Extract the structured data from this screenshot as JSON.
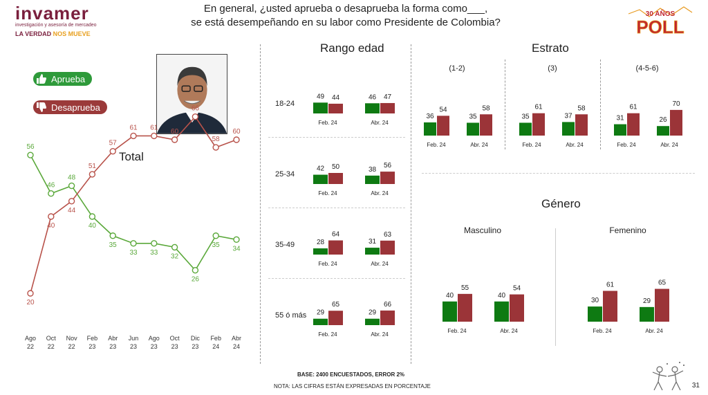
{
  "header": {
    "logo_word": "invamer",
    "logo_sub": "investigación y asesoría de mercadeo",
    "logo_tag_a": "LA VERDAD ",
    "logo_tag_b": "NOS MUEVE",
    "question_line1": "En general, ¿usted aprueba o desaprueba la forma como___,",
    "question_line2": "se está desempeñando en su labor como Presidente de Colombia?",
    "badge_top": "30 AÑOS",
    "badge_main": "POLL"
  },
  "legend": {
    "approve": "Aprueba",
    "disapprove": "Desaprueba"
  },
  "colors": {
    "approve": "#0e7a12",
    "disapprove": "#9b3438",
    "approve_line": "#5aa83a",
    "disapprove_line": "#b8524a"
  },
  "footer": {
    "base": "BASE: 2400 ENCUESTADOS, ERROR 2%",
    "note": "NOTA: LAS CIFRAS ESTÁN EXPRESADAS EN PORCENTAJE",
    "page": "31"
  },
  "chart_data": [
    {
      "type": "line",
      "title": "Total",
      "x": [
        "Ago 22",
        "Oct 22",
        "Nov 22",
        "Feb 23",
        "Abr 23",
        "Jun 23",
        "Ago 23",
        "Oct 23",
        "Dic 23",
        "Feb 24",
        "Abr 24"
      ],
      "series": [
        {
          "name": "Aprueba",
          "values": [
            56,
            46,
            48,
            40,
            35,
            33,
            33,
            32,
            26,
            35,
            34
          ]
        },
        {
          "name": "Desaprueba",
          "values": [
            20,
            40,
            44,
            51,
            57,
            61,
            61,
            60,
            66,
            58,
            60
          ]
        }
      ]
    },
    {
      "type": "bar",
      "title": "Rango edad",
      "groups": [
        {
          "label": "18-24",
          "periods": [
            {
              "label": "Feb. 24",
              "values": [
                49,
                44
              ]
            },
            {
              "label": "Abr. 24",
              "values": [
                46,
                47
              ]
            }
          ]
        },
        {
          "label": "25-34",
          "periods": [
            {
              "label": "Feb. 24",
              "values": [
                42,
                50
              ]
            },
            {
              "label": "Abr. 24",
              "values": [
                38,
                56
              ]
            }
          ]
        },
        {
          "label": "35-49",
          "periods": [
            {
              "label": "Feb. 24",
              "values": [
                28,
                64
              ]
            },
            {
              "label": "Abr. 24",
              "values": [
                31,
                63
              ]
            }
          ]
        },
        {
          "label": "55 ó más",
          "periods": [
            {
              "label": "Feb. 24",
              "values": [
                29,
                65
              ]
            },
            {
              "label": "Abr. 24",
              "values": [
                29,
                66
              ]
            }
          ]
        }
      ]
    },
    {
      "type": "bar",
      "title": "Estrato",
      "groups": [
        {
          "label": "(1-2)",
          "periods": [
            {
              "label": "Feb. 24",
              "values": [
                36,
                54
              ]
            },
            {
              "label": "Abr. 24",
              "values": [
                35,
                58
              ]
            }
          ]
        },
        {
          "label": "(3)",
          "periods": [
            {
              "label": "Feb. 24",
              "values": [
                35,
                61
              ]
            },
            {
              "label": "Abr. 24",
              "values": [
                37,
                58
              ]
            }
          ]
        },
        {
          "label": "(4-5-6)",
          "periods": [
            {
              "label": "Feb. 24",
              "values": [
                31,
                61
              ]
            },
            {
              "label": "Abr. 24",
              "values": [
                26,
                70
              ]
            }
          ]
        }
      ]
    },
    {
      "type": "bar",
      "title": "Género",
      "groups": [
        {
          "label": "Masculino",
          "periods": [
            {
              "label": "Feb. 24",
              "values": [
                40,
                55
              ]
            },
            {
              "label": "Abr. 24",
              "values": [
                40,
                54
              ]
            }
          ]
        },
        {
          "label": "Femenino",
          "periods": [
            {
              "label": "Feb. 24",
              "values": [
                30,
                61
              ]
            },
            {
              "label": "Abr. 24",
              "values": [
                29,
                65
              ]
            }
          ]
        }
      ]
    }
  ]
}
